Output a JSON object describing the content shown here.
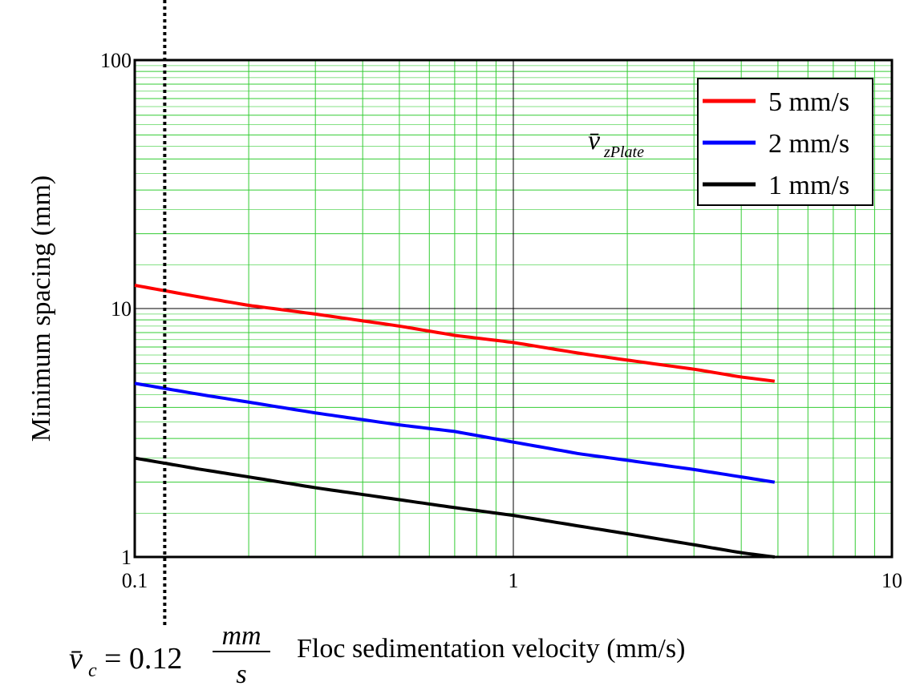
{
  "chart_data": {
    "type": "line",
    "xlabel": "Floc sedimentation velocity (mm/s)",
    "ylabel": "Minimum spacing (mm)",
    "xscale": "log",
    "yscale": "log",
    "xlim": [
      0.1,
      10
    ],
    "ylim": [
      1,
      100
    ],
    "xticks": [
      "0.1",
      "1",
      "10"
    ],
    "yticks": [
      "100",
      "10",
      "1"
    ],
    "grid": true,
    "grid_color": "#33cc33",
    "legend_position": "top-right",
    "series": [
      {
        "name": "5 mm/s",
        "color": "#ff0000",
        "x": [
          0.1,
          0.15,
          0.2,
          0.3,
          0.5,
          0.7,
          1.0,
          1.5,
          2.0,
          3.0,
          4.0,
          4.9
        ],
        "y": [
          12.4,
          11.1,
          10.3,
          9.5,
          8.5,
          7.8,
          7.3,
          6.6,
          6.2,
          5.7,
          5.3,
          5.1
        ]
      },
      {
        "name": "2 mm/s",
        "color": "#0000ff",
        "x": [
          0.1,
          0.15,
          0.2,
          0.3,
          0.5,
          0.7,
          1.0,
          1.5,
          2.0,
          3.0,
          4.0,
          4.9
        ],
        "y": [
          5.0,
          4.5,
          4.2,
          3.8,
          3.4,
          3.2,
          2.9,
          2.6,
          2.45,
          2.25,
          2.1,
          2.0
        ]
      },
      {
        "name": "1 mm/s",
        "color": "#000000",
        "x": [
          0.1,
          0.15,
          0.2,
          0.3,
          0.5,
          0.7,
          1.0,
          1.5,
          2.0,
          3.0,
          4.0,
          4.9
        ],
        "y": [
          2.5,
          2.25,
          2.1,
          1.9,
          1.7,
          1.58,
          1.47,
          1.33,
          1.24,
          1.12,
          1.04,
          1.0
        ]
      }
    ],
    "annotations": {
      "legend_title": "v̄",
      "legend_title_subscript": "zPlate",
      "vline_label": "v̄",
      "vline_label_subscript": "c",
      "vline_label_eq": "= 0.12",
      "vline_frac_numerator": "mm",
      "vline_frac_denominator": "s"
    },
    "vline": {
      "x": 0.12,
      "style": "dotted"
    }
  }
}
